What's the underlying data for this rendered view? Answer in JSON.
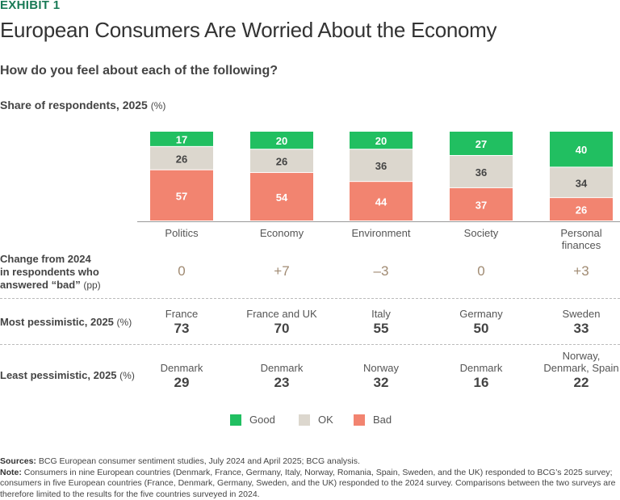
{
  "exhibit": "EXHIBIT 1",
  "title": "European Consumers Are Worried About the Economy",
  "question": "How do you feel about each of the following?",
  "subtitle": "Share of respondents, 2025",
  "subtitle_unit": "(%)",
  "chart_data": {
    "type": "bar",
    "stacked": true,
    "categories": [
      "Politics",
      "Economy",
      "Environment",
      "Society",
      "Personal finances"
    ],
    "series": [
      {
        "name": "Good",
        "color": "#21bf61",
        "values": [
          17,
          20,
          20,
          27,
          40
        ]
      },
      {
        "name": "OK",
        "color": "#dcd7ce",
        "values": [
          26,
          26,
          36,
          36,
          34
        ]
      },
      {
        "name": "Bad",
        "color": "#f28470",
        "values": [
          57,
          54,
          44,
          37,
          26
        ]
      }
    ],
    "ylim": [
      0,
      100
    ],
    "legend": "bottom"
  },
  "rows": {
    "change": {
      "label_lines": [
        "Change from 2024",
        "in respondents who",
        "answered “bad”"
      ],
      "unit": "(pp)",
      "values": [
        "0",
        "+7",
        "–3",
        "0",
        "+3"
      ]
    },
    "most": {
      "label": "Most pessimistic, 2025",
      "unit": "(%)",
      "countries": [
        [
          "France"
        ],
        [
          "France and UK"
        ],
        [
          "Italy"
        ],
        [
          "Germany"
        ],
        [
          "Sweden"
        ]
      ],
      "values": [
        "73",
        "70",
        "55",
        "50",
        "33"
      ]
    },
    "least": {
      "label": "Least pessimistic, 2025",
      "unit": "(%)",
      "countries": [
        [
          "Denmark"
        ],
        [
          "Denmark"
        ],
        [
          "Norway"
        ],
        [
          "Denmark"
        ],
        [
          "Norway,",
          "Denmark, Spain"
        ]
      ],
      "values": [
        "29",
        "23",
        "32",
        "16",
        "22"
      ]
    }
  },
  "notes": {
    "sources_label": "Sources:",
    "sources": "BCG European consumer sentiment studies, July 2024 and April 2025; BCG analysis.",
    "note_label": "Note:",
    "note": "Consumers in nine European countries (Denmark, France, Germany, Italy, Norway, Romania, Spain, Sweden, and the UK) responded to BCG’s 2025 survey; consumers in five European countries (France, Denmark, Germany, Sweden, and the UK) responded to the 2024 survey. Comparisons between the two surveys are therefore limited to the results for the five countries surveyed in 2024."
  }
}
